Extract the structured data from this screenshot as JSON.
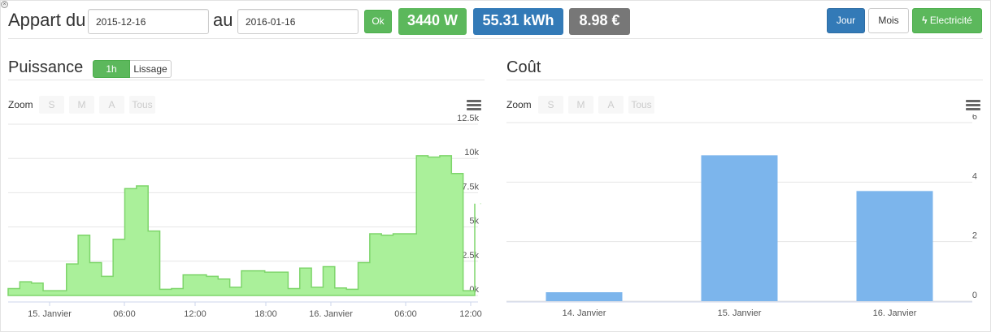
{
  "toolbar": {
    "label_from": "Appart du",
    "date_from": "2015-12-16",
    "label_to": "au",
    "date_to": "2016-01-16",
    "ok_label": "Ok",
    "power_value": "3440 W",
    "energy_value": "55.31 kWh",
    "cost_value": "8.98 €",
    "jour_label": "Jour",
    "mois_label": "Mois",
    "electricite_label": "Electricité",
    "close_glyph": "×",
    "bolt_glyph": "ϟ"
  },
  "colors": {
    "green": "#5cb85c",
    "blue": "#337ab7",
    "gray": "#777777",
    "area_fill": "#aaf09a",
    "area_line": "#7ed56b",
    "bar_fill": "#7cb5ec"
  },
  "puissance": {
    "title": "Puissance",
    "btn_1h": "1h",
    "btn_lissage": "Lissage",
    "zoom_label": "Zoom",
    "zoom_buttons": [
      "S",
      "M",
      "A",
      "Tous"
    ],
    "menu_icon": "hamburger-menu-icon"
  },
  "cout": {
    "title": "Coût",
    "zoom_label": "Zoom",
    "zoom_buttons": [
      "S",
      "M",
      "A",
      "Tous"
    ],
    "menu_icon": "hamburger-menu-icon"
  },
  "chart_data": [
    {
      "type": "area",
      "y_tick_labels": [
        "0k",
        "2.5k",
        "5k",
        "7.5k",
        "10k",
        "12.5k"
      ],
      "x_tick_labels": [
        "15. Janvier",
        "06:00",
        "12:00",
        "18:00",
        "16. Janvier",
        "06:00",
        "12:00"
      ],
      "ylim": [
        0,
        12500
      ],
      "grid": true,
      "x_hours": [
        0,
        1,
        2,
        3,
        4,
        5,
        6,
        7,
        8,
        9,
        10,
        11,
        12,
        13,
        14,
        15,
        16,
        17,
        18,
        19,
        20,
        21,
        22,
        23,
        24,
        25,
        26,
        27,
        28,
        29,
        30,
        31,
        32,
        33,
        34,
        35,
        36,
        37,
        38,
        39,
        40
      ],
      "values": [
        500,
        1000,
        900,
        350,
        350,
        2300,
        4400,
        2400,
        1400,
        4100,
        7800,
        8000,
        4700,
        450,
        500,
        1500,
        1500,
        1400,
        1200,
        600,
        1800,
        1800,
        1700,
        1700,
        500,
        2000,
        600,
        2100,
        550,
        450,
        2400,
        4500,
        4400,
        4500,
        4500,
        10200,
        10100,
        10200,
        8900,
        350,
        6700
      ]
    },
    {
      "type": "bar",
      "categories": [
        "14. Janvier",
        "15. Janvier",
        "16. Janvier"
      ],
      "values": [
        0.3,
        4.9,
        3.7
      ],
      "y_tick_labels": [
        "0",
        "2",
        "4",
        "6"
      ],
      "ylim": [
        0,
        6
      ],
      "grid": true
    }
  ]
}
